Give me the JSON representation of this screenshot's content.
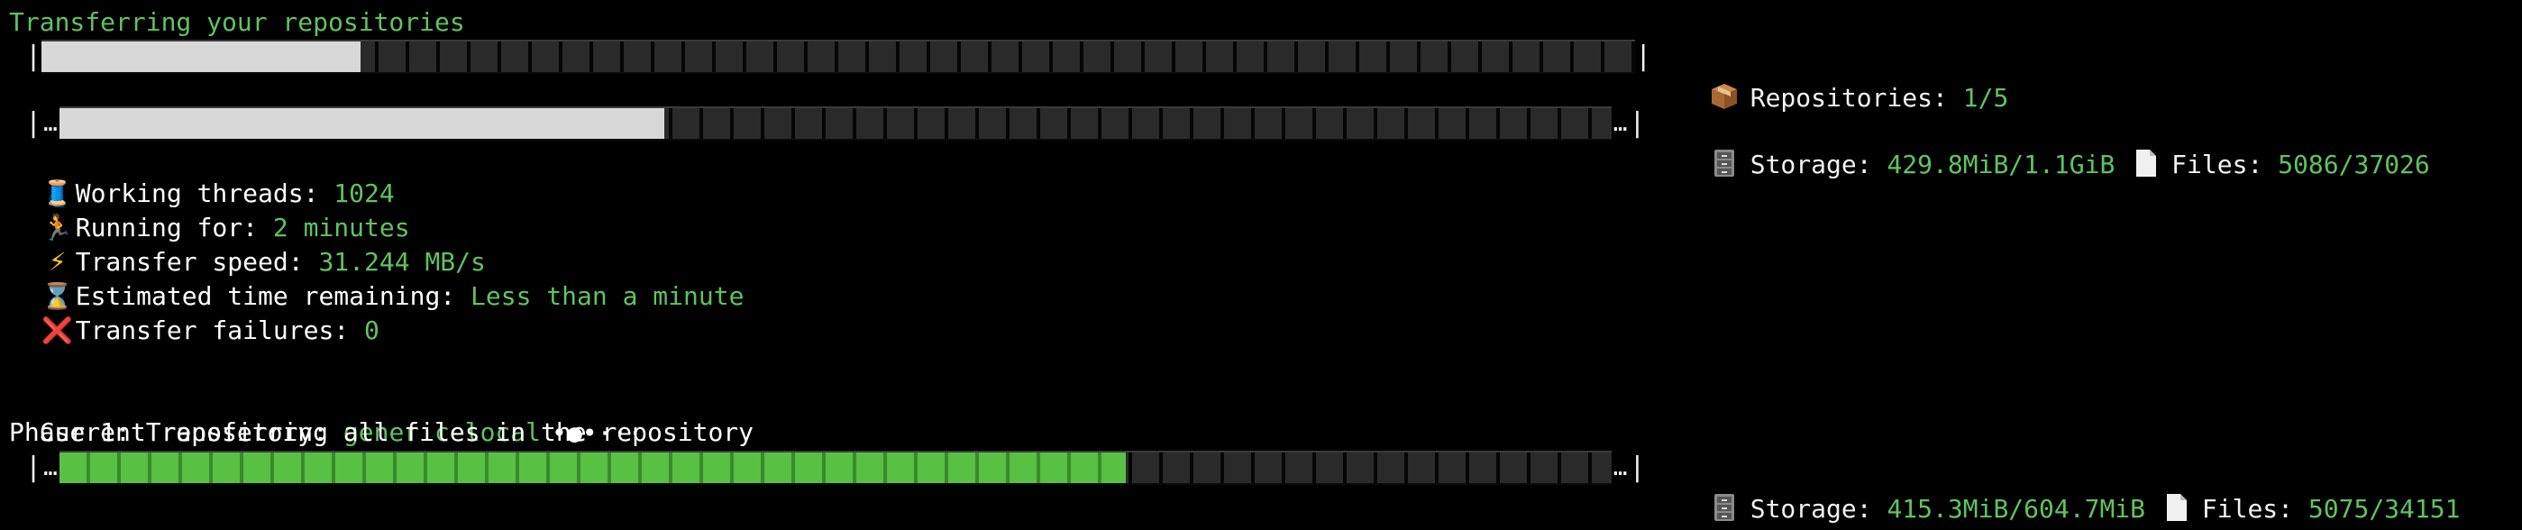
{
  "header": {
    "title": "Transferring your repositories"
  },
  "repositories_bar": {
    "progress": 0.2,
    "label": "Repositories: ",
    "value": "1/5",
    "icon": "package-icon"
  },
  "overall_bar": {
    "progress": 0.39,
    "storage_label": "Storage: ",
    "storage_value": "429.8MiB/1.1GiB",
    "files_label": "Files: ",
    "files_value": "5086/37026"
  },
  "stats": [
    {
      "icon": "spool-icon",
      "glyph": "🧵",
      "label": "Working threads: ",
      "value": "1024"
    },
    {
      "icon": "runner-icon",
      "glyph": "🏃",
      "label": "Running for: ",
      "value": "2 minutes"
    },
    {
      "icon": "lightning-icon",
      "glyph": "⚡",
      "label": "Transfer speed: ",
      "value": "31.244 MB/s"
    },
    {
      "icon": "hourglass-icon",
      "glyph": "⌛",
      "label": "Estimated time remaining: ",
      "value": "Less than a minute"
    },
    {
      "icon": "cross-mark-icon",
      "glyph": "❌",
      "label": "Transfer failures: ",
      "value": "0"
    }
  ],
  "current_repository": {
    "label": "Current repository: ",
    "value": "generic-local",
    "spinner": "•●•···"
  },
  "phase": {
    "text": "Phase 1: Transferring all files in the repository"
  },
  "phase_bar": {
    "progress": 0.687,
    "storage_label": "Storage: ",
    "storage_value": "415.3MiB/604.7MiB",
    "files_label": "Files: ",
    "files_value": "5075/34151"
  },
  "bar_chars": {
    "edge": "|",
    "dots": "…"
  },
  "colors": {
    "background": "#000000",
    "text": "#f2f2f2",
    "accent_green": "#5fc35f",
    "bar_light": "#d8d8d8",
    "bar_green": "#58c043"
  }
}
